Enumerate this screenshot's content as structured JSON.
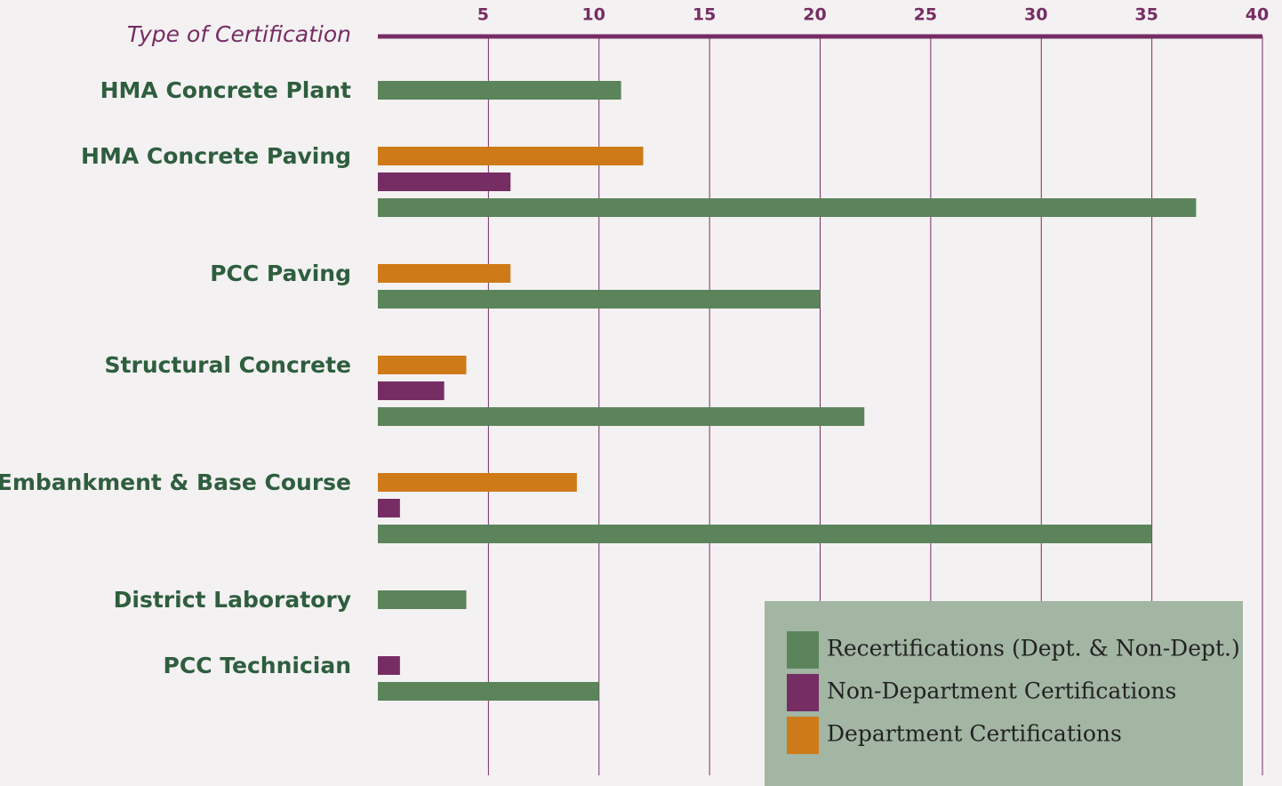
{
  "chart_data": {
    "type": "bar",
    "orientation": "horizontal",
    "axis_title": "Type of Certification",
    "categories": [
      "HMA Concrete Plant",
      "HMA Concrete Paving",
      "PCC Paving",
      "Structural Concrete",
      "Embankment & Base Course",
      "District Laboratory",
      "PCC Technician"
    ],
    "series": [
      {
        "name": "Recertifications (Dept. & Non-Dept.)",
        "color": "#5b845b",
        "values": [
          11,
          37,
          20,
          22,
          35,
          4,
          10
        ]
      },
      {
        "name": "Non-Department Certifications",
        "color": "#762d64",
        "values": [
          null,
          6,
          null,
          3,
          1,
          null,
          1
        ]
      },
      {
        "name": "Department Certifications",
        "color": "#cf7a18",
        "values": [
          null,
          12,
          6,
          4,
          9,
          null,
          null
        ]
      }
    ],
    "xlim": [
      0,
      40
    ],
    "xticks": [
      5,
      10,
      15,
      20,
      25,
      30,
      35,
      40
    ],
    "grid": true
  }
}
